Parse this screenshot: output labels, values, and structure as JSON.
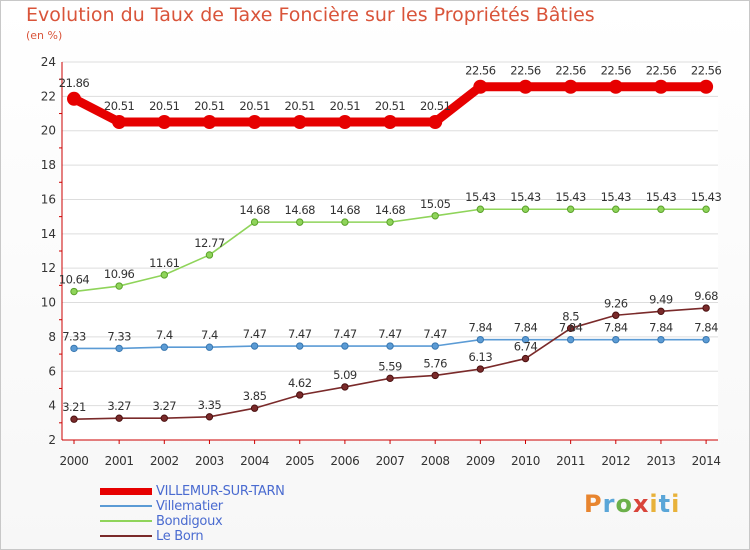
{
  "header": {
    "title": "Evolution du Taux de Taxe Foncière sur les Propriétés Bâties",
    "subtitle": "(en %)"
  },
  "logo": {
    "text": "Proxiti"
  },
  "colors": {
    "title": "#d9543a",
    "axis": "#cc0000",
    "legend_text": "#4a6bd0",
    "grid": "#dddddd"
  },
  "chart_data": {
    "type": "line",
    "title": "Evolution du Taux de Taxe Foncière sur les Propriétés Bâties",
    "subtitle": "(en %)",
    "xlabel": "",
    "ylabel": "",
    "x": [
      "2000",
      "2001",
      "2002",
      "2003",
      "2004",
      "2005",
      "2006",
      "2007",
      "2008",
      "2009",
      "2010",
      "2011",
      "2012",
      "2013",
      "2014"
    ],
    "ylim": [
      2,
      24
    ],
    "yticks": [
      2,
      4,
      6,
      8,
      10,
      12,
      14,
      16,
      18,
      20,
      22,
      24
    ],
    "grid": "horizontal",
    "legend_position": "bottom-left",
    "series": [
      {
        "name": "VILLEMUR-SUR-TARN",
        "color": "#e60000",
        "values": [
          21.86,
          20.51,
          20.51,
          20.51,
          20.51,
          20.51,
          20.51,
          20.51,
          20.51,
          22.56,
          22.56,
          22.56,
          22.56,
          22.56,
          22.56
        ],
        "labels": [
          "21.86",
          "20.51",
          "20.51",
          "20.51",
          "20.51",
          "20.51",
          "20.51",
          "20.51",
          "20.51",
          "22.56",
          "22.56",
          "22.56",
          "22.56",
          "22.56",
          "22.56"
        ]
      },
      {
        "name": "Villematier",
        "color": "#5b9bd5",
        "values": [
          7.33,
          7.33,
          7.4,
          7.4,
          7.47,
          7.47,
          7.47,
          7.47,
          7.47,
          7.84,
          7.84,
          7.84,
          7.84,
          7.84,
          7.84
        ],
        "labels": [
          "7.33",
          "7.33",
          "7.4",
          "7.4",
          "7.47",
          "7.47",
          "7.47",
          "7.47",
          "7.47",
          "7.84",
          "7.84",
          "7.84",
          "7.84",
          "7.84",
          "7.84"
        ]
      },
      {
        "name": "Bondigoux",
        "color": "#8fd45a",
        "values": [
          10.64,
          10.96,
          11.61,
          12.77,
          14.68,
          14.68,
          14.68,
          14.68,
          15.05,
          15.43,
          15.43,
          15.43,
          15.43,
          15.43,
          15.43
        ],
        "labels": [
          "10.64",
          "10.96",
          "11.61",
          "12.77",
          "14.68",
          "14.68",
          "14.68",
          "14.68",
          "15.05",
          "15.43",
          "15.43",
          "15.43",
          "15.43",
          "15.43",
          "15.43"
        ]
      },
      {
        "name": "Le Born",
        "color": "#7a2a2a",
        "values": [
          3.21,
          3.27,
          3.27,
          3.35,
          3.85,
          4.62,
          5.09,
          5.59,
          5.76,
          6.13,
          6.74,
          8.5,
          9.26,
          9.49,
          9.68
        ],
        "labels": [
          "3.21",
          "3.27",
          "3.27",
          "3.35",
          "3.85",
          "4.62",
          "5.09",
          "5.59",
          "5.76",
          "6.13",
          "6.74",
          "8.5",
          "9.26",
          "9.49",
          "9.68"
        ]
      }
    ]
  }
}
